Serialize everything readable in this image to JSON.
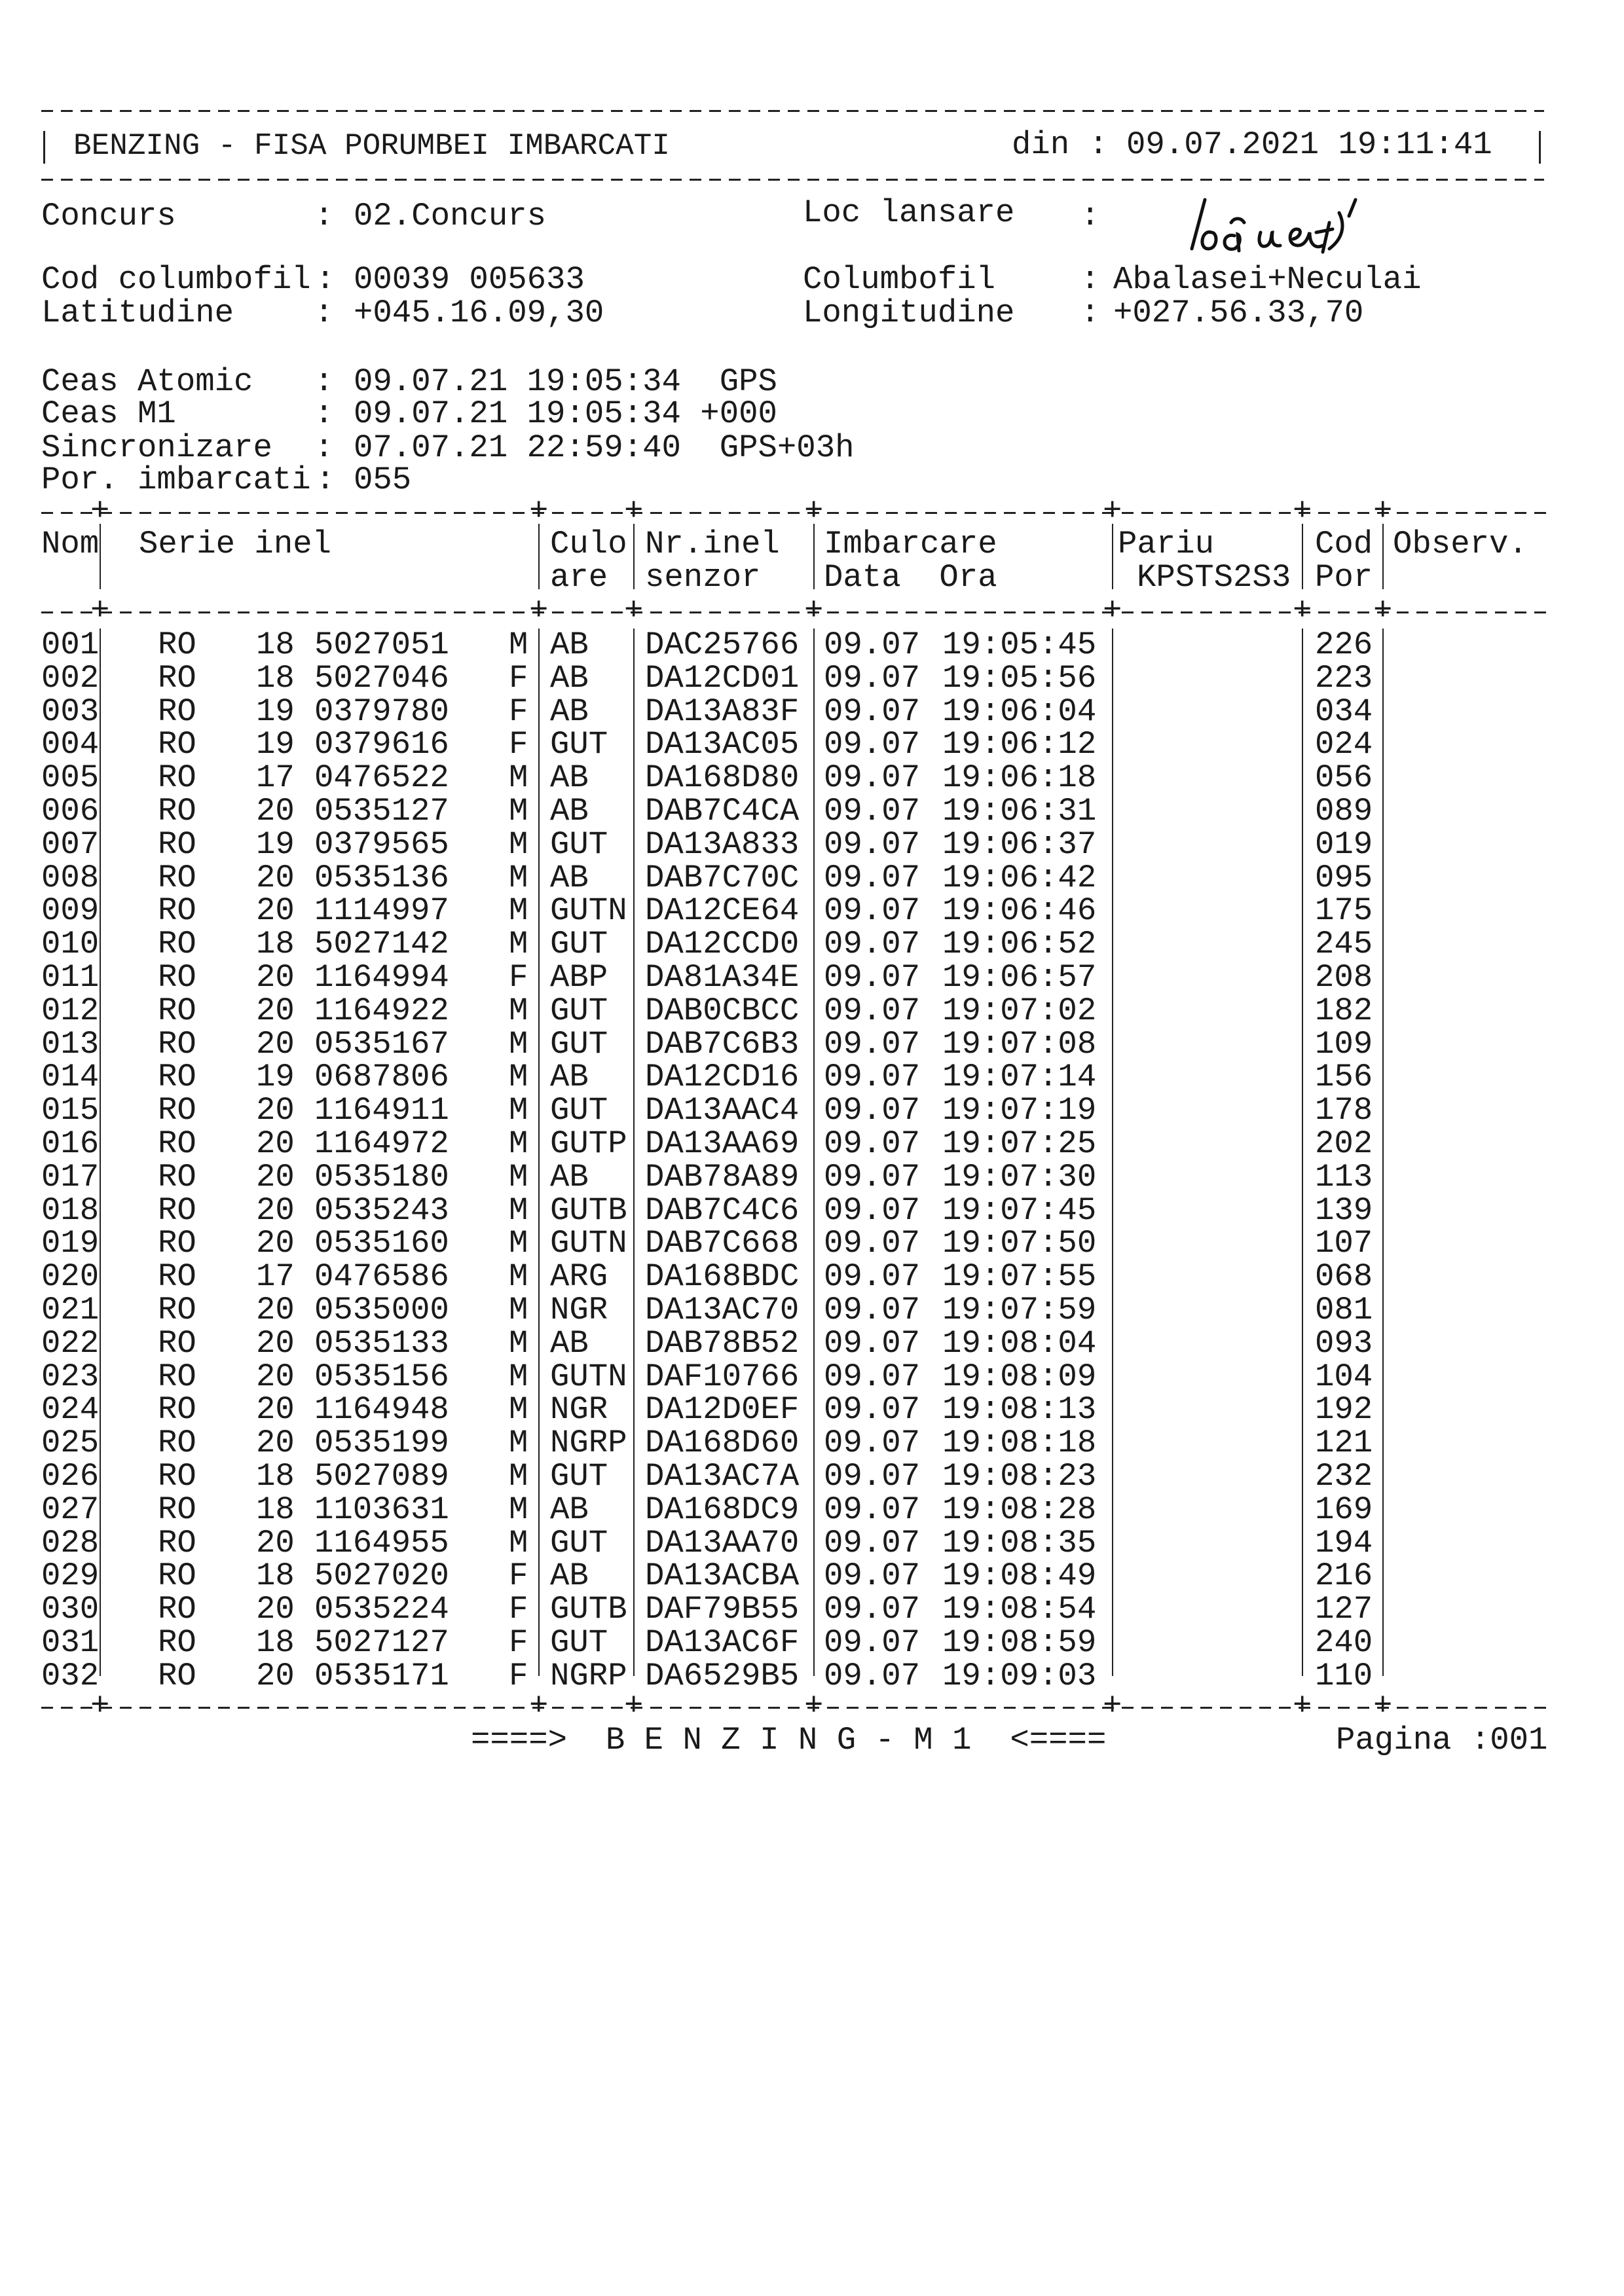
{
  "header": {
    "title": "BENZING - FISA PORUMBEI IMBARCATI",
    "din_label": "din :",
    "din_value": "09.07.2021 19:11:41"
  },
  "info": {
    "concurs_label": "Concurs",
    "concurs_value": "02.Concurs",
    "loc_lansare_label": "Loc lansare",
    "loc_lansare_value": "",
    "cod_label": "Cod columbofil",
    "cod_value": "00039 005633",
    "columbofil_label": "Columbofil",
    "columbofil_value": "Abalasei+Neculai",
    "lat_label": "Latitudine",
    "lat_value": "+045.16.09,30",
    "long_label": "Longitudine",
    "long_value": "+027.56.33,70",
    "ceas_atomic_label": "Ceas Atomic",
    "ceas_atomic_value": "09.07.21 19:05:34  GPS",
    "ceas_m1_label": "Ceas M1",
    "ceas_m1_value": "09.07.21 19:05:34 +000",
    "sinc_label": "Sincronizare",
    "sinc_value": "07.07.21 22:59:40  GPS+03h",
    "por_label": "Por. imbarcati",
    "por_value": "055"
  },
  "table": {
    "headers": {
      "nom": "Nom",
      "serie": "Serie inel",
      "culo1": "Culo",
      "culo2": "are",
      "nr1": "Nr.inel",
      "nr2": "senzor",
      "imb1": "Imbarcare",
      "imb2": "Data  Ora",
      "pariu1": "Pariu",
      "pariu2": "KPSTS2S3",
      "cod1": "Cod",
      "cod2": "Por",
      "obs": "Observ."
    },
    "rows": [
      [
        "001",
        "RO",
        "18",
        "5027051",
        "M",
        "AB",
        "DAC25766",
        "09.07",
        "19:05:45",
        "226"
      ],
      [
        "002",
        "RO",
        "18",
        "5027046",
        "F",
        "AB",
        "DA12CD01",
        "09.07",
        "19:05:56",
        "223"
      ],
      [
        "003",
        "RO",
        "19",
        "0379780",
        "F",
        "AB",
        "DA13A83F",
        "09.07",
        "19:06:04",
        "034"
      ],
      [
        "004",
        "RO",
        "19",
        "0379616",
        "F",
        "GUT",
        "DA13AC05",
        "09.07",
        "19:06:12",
        "024"
      ],
      [
        "005",
        "RO",
        "17",
        "0476522",
        "M",
        "AB",
        "DA168D80",
        "09.07",
        "19:06:18",
        "056"
      ],
      [
        "006",
        "RO",
        "20",
        "0535127",
        "M",
        "AB",
        "DAB7C4CA",
        "09.07",
        "19:06:31",
        "089"
      ],
      [
        "007",
        "RO",
        "19",
        "0379565",
        "M",
        "GUT",
        "DA13A833",
        "09.07",
        "19:06:37",
        "019"
      ],
      [
        "008",
        "RO",
        "20",
        "0535136",
        "M",
        "AB",
        "DAB7C70C",
        "09.07",
        "19:06:42",
        "095"
      ],
      [
        "009",
        "RO",
        "20",
        "1114997",
        "M",
        "GUTN",
        "DA12CE64",
        "09.07",
        "19:06:46",
        "175"
      ],
      [
        "010",
        "RO",
        "18",
        "5027142",
        "M",
        "GUT",
        "DA12CCD0",
        "09.07",
        "19:06:52",
        "245"
      ],
      [
        "011",
        "RO",
        "20",
        "1164994",
        "F",
        "ABP",
        "DA81A34E",
        "09.07",
        "19:06:57",
        "208"
      ],
      [
        "012",
        "RO",
        "20",
        "1164922",
        "M",
        "GUT",
        "DAB0CBCC",
        "09.07",
        "19:07:02",
        "182"
      ],
      [
        "013",
        "RO",
        "20",
        "0535167",
        "M",
        "GUT",
        "DAB7C6B3",
        "09.07",
        "19:07:08",
        "109"
      ],
      [
        "014",
        "RO",
        "19",
        "0687806",
        "M",
        "AB",
        "DA12CD16",
        "09.07",
        "19:07:14",
        "156"
      ],
      [
        "015",
        "RO",
        "20",
        "1164911",
        "M",
        "GUT",
        "DA13AAC4",
        "09.07",
        "19:07:19",
        "178"
      ],
      [
        "016",
        "RO",
        "20",
        "1164972",
        "M",
        "GUTP",
        "DA13AA69",
        "09.07",
        "19:07:25",
        "202"
      ],
      [
        "017",
        "RO",
        "20",
        "0535180",
        "M",
        "AB",
        "DAB78A89",
        "09.07",
        "19:07:30",
        "113"
      ],
      [
        "018",
        "RO",
        "20",
        "0535243",
        "M",
        "GUTB",
        "DAB7C4C6",
        "09.07",
        "19:07:45",
        "139"
      ],
      [
        "019",
        "RO",
        "20",
        "0535160",
        "M",
        "GUTN",
        "DAB7C668",
        "09.07",
        "19:07:50",
        "107"
      ],
      [
        "020",
        "RO",
        "17",
        "0476586",
        "M",
        "ARG",
        "DA168BDC",
        "09.07",
        "19:07:55",
        "068"
      ],
      [
        "021",
        "RO",
        "20",
        "0535000",
        "M",
        "NGR",
        "DA13AC70",
        "09.07",
        "19:07:59",
        "081"
      ],
      [
        "022",
        "RO",
        "20",
        "0535133",
        "M",
        "AB",
        "DAB78B52",
        "09.07",
        "19:08:04",
        "093"
      ],
      [
        "023",
        "RO",
        "20",
        "0535156",
        "M",
        "GUTN",
        "DAF10766",
        "09.07",
        "19:08:09",
        "104"
      ],
      [
        "024",
        "RO",
        "20",
        "1164948",
        "M",
        "NGR",
        "DA12D0EF",
        "09.07",
        "19:08:13",
        "192"
      ],
      [
        "025",
        "RO",
        "20",
        "0535199",
        "M",
        "NGRP",
        "DA168D60",
        "09.07",
        "19:08:18",
        "121"
      ],
      [
        "026",
        "RO",
        "18",
        "5027089",
        "M",
        "GUT",
        "DA13AC7A",
        "09.07",
        "19:08:23",
        "232"
      ],
      [
        "027",
        "RO",
        "18",
        "1103631",
        "M",
        "AB",
        "DA168DC9",
        "09.07",
        "19:08:28",
        "169"
      ],
      [
        "028",
        "RO",
        "20",
        "1164955",
        "M",
        "GUT",
        "DA13AA70",
        "09.07",
        "19:08:35",
        "194"
      ],
      [
        "029",
        "RO",
        "18",
        "5027020",
        "F",
        "AB",
        "DA13ACBA",
        "09.07",
        "19:08:49",
        "216"
      ],
      [
        "030",
        "RO",
        "20",
        "0535224",
        "F",
        "GUTB",
        "DAF79B55",
        "09.07",
        "19:08:54",
        "127"
      ],
      [
        "031",
        "RO",
        "18",
        "5027127",
        "F",
        "GUT",
        "DA13AC6F",
        "09.07",
        "19:08:59",
        "240"
      ],
      [
        "032",
        "RO",
        "20",
        "0535171",
        "F",
        "NGRP",
        "DA6529B5",
        "09.07",
        "19:09:03",
        "110"
      ]
    ]
  },
  "footer": {
    "banner": "====>  B E N Z I N G - M 1  <====",
    "page": "Pagina :001"
  }
}
